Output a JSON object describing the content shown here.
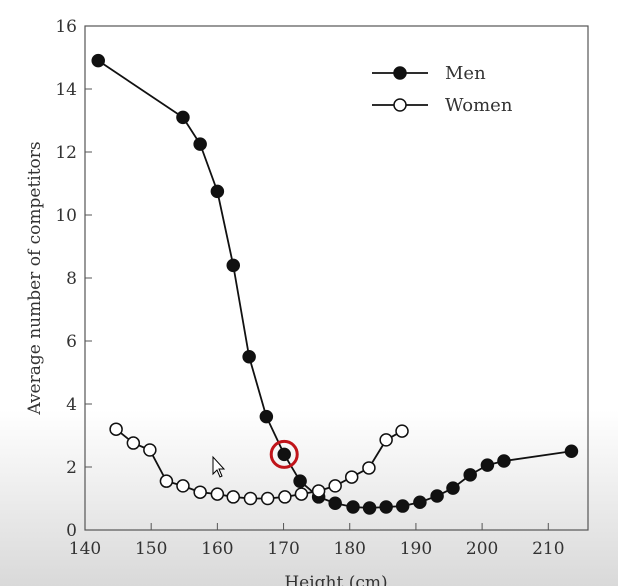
{
  "chart_data": {
    "type": "line",
    "title": "",
    "xlabel": "Height (cm)",
    "ylabel": "Average number of competitors",
    "xlim": [
      140,
      216
    ],
    "ylim": [
      0,
      16
    ],
    "xticks": [
      140,
      150,
      160,
      170,
      180,
      190,
      200,
      210
    ],
    "yticks": [
      0,
      2,
      4,
      6,
      8,
      10,
      12,
      14,
      16
    ],
    "grid": false,
    "legend_position": "top-right",
    "series": [
      {
        "name": "Men",
        "marker": "filled-circle",
        "x": [
          142,
          154.8,
          157.4,
          160,
          162.4,
          164.8,
          167.4,
          170.1,
          172.5,
          175.3,
          177.8,
          180.5,
          183,
          185.5,
          188,
          190.6,
          193.2,
          195.6,
          198.2,
          200.8,
          203.3,
          213.5
        ],
        "y": [
          14.9,
          13.1,
          12.25,
          10.75,
          8.4,
          5.5,
          3.6,
          2.4,
          1.55,
          1.05,
          0.85,
          0.73,
          0.7,
          0.73,
          0.76,
          0.88,
          1.08,
          1.33,
          1.75,
          2.06,
          2.19,
          2.5
        ]
      },
      {
        "name": "Women",
        "marker": "open-circle",
        "x": [
          144.7,
          147.3,
          149.8,
          152.3,
          154.8,
          157.4,
          160,
          162.4,
          165,
          167.6,
          170.2,
          172.7,
          175.3,
          177.8,
          180.3,
          182.9,
          185.5,
          187.9
        ],
        "y": [
          3.2,
          2.76,
          2.54,
          1.55,
          1.4,
          1.2,
          1.14,
          1.05,
          1.0,
          1.0,
          1.05,
          1.14,
          1.24,
          1.4,
          1.68,
          1.97,
          2.86,
          3.14
        ]
      }
    ],
    "annotations": [
      {
        "type": "highlight-circle",
        "x": 170.1,
        "y": 2.4,
        "color": "#c0141a"
      }
    ]
  }
}
